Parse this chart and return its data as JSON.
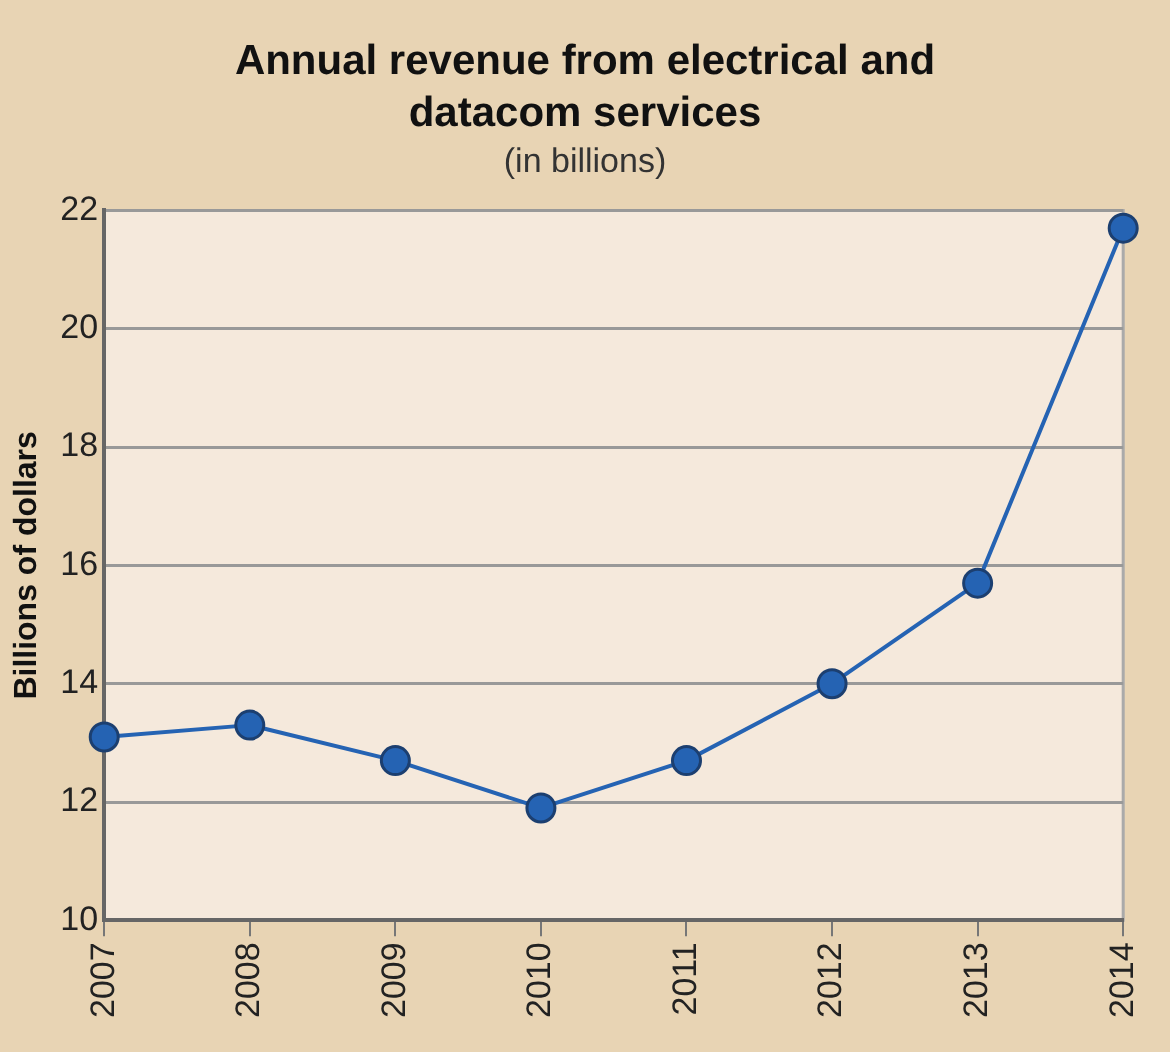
{
  "chart_data": {
    "type": "line",
    "title": "Annual revenue from electrical and datacom services",
    "subtitle": "(in billions)",
    "ylabel": "Billions of dollars",
    "x": [
      2007,
      2008,
      2009,
      2010,
      2011,
      2012,
      2013,
      2014
    ],
    "series": [
      {
        "color": "#2563b3",
        "values": [
          13.1,
          13.3,
          12.7,
          11.9,
          12.7,
          14.0,
          15.7,
          21.7
        ]
      }
    ],
    "xlim": [
      2007,
      2014
    ],
    "xticks": [
      2007,
      2008,
      2009,
      2010,
      2011,
      2012,
      2013,
      2014
    ],
    "ylim": [
      10,
      22
    ],
    "yticks": [
      10,
      12,
      14,
      16,
      18,
      20,
      22
    ],
    "grid": "y",
    "legend": false,
    "marker": "circle",
    "line_style": "solid"
  }
}
